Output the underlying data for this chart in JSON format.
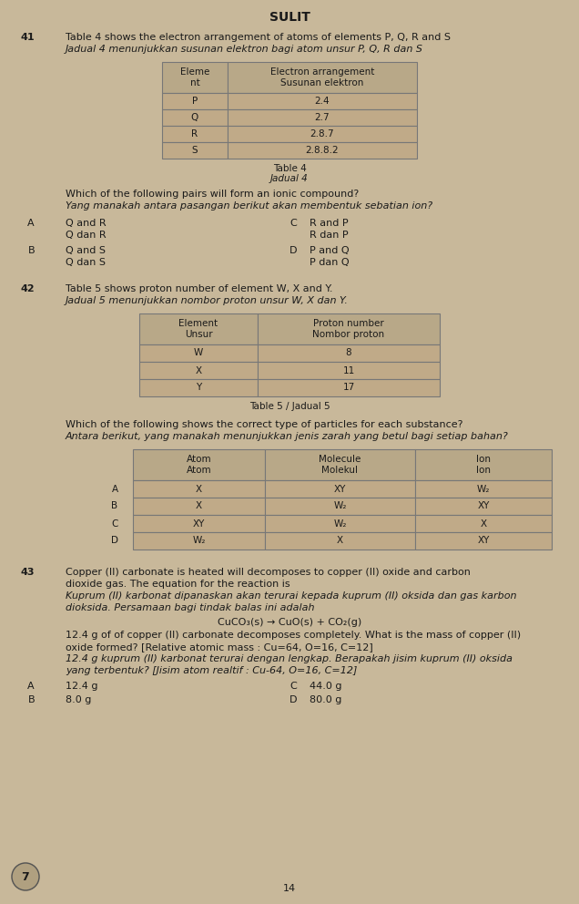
{
  "bg_color": "#c8b89a",
  "text_color": "#1a1a1a",
  "title": "SULIT",
  "q41_num": "41",
  "q41_en": "Table 4 shows the electron arrangement of atoms of elements P, Q, R and S",
  "q41_my": "Jadual 4 menunjukkan susunan elektron bagi atom unsur P, Q, R dan S",
  "table4_data": [
    [
      "P",
      "2.4"
    ],
    [
      "Q",
      "2.7"
    ],
    [
      "R",
      "2.8.7"
    ],
    [
      "S",
      "2.8.8.2"
    ]
  ],
  "table4_caption_en": "Table 4",
  "table4_caption_my": "Jadual 4",
  "q41_question_en": "Which of the following pairs will form an ionic compound?",
  "q41_question_my": "Yang manakah antara pasangan berikut akan membentuk sebatian ion?",
  "q41_A_en": "Q and R",
  "q41_A_my": "Q dan R",
  "q41_B_en": "Q and S",
  "q41_B_my": "Q dan S",
  "q41_C_en": "R and P",
  "q41_C_my": "R dan P",
  "q41_D_en": "P and Q",
  "q41_D_my": "P dan Q",
  "q42_num": "42",
  "q42_en": "Table 5 shows proton number of element W, X and Y.",
  "q42_my": "Jadual 5 menunjukkan nombor proton unsur W, X dan Y.",
  "table5_data": [
    [
      "W",
      "8"
    ],
    [
      "X",
      "11"
    ],
    [
      "Y",
      "17"
    ]
  ],
  "table5_caption": "Table 5 / Jadual 5",
  "q42_question_en": "Which of the following shows the correct type of particles for each substance?",
  "q42_question_my": "Antara berikut, yang manakah menunjukkan jenis zarah yang betul bagi setiap bahan?",
  "table6_data": [
    [
      "A",
      "X",
      "XY",
      "W₂"
    ],
    [
      "B",
      "X",
      "W₂",
      "XY"
    ],
    [
      "C",
      "XY",
      "W₂",
      "X"
    ],
    [
      "D",
      "W₂",
      "X",
      "XY"
    ]
  ],
  "q43_num": "43",
  "q43_en1": "Copper (II) carbonate is heated will decomposes to copper (II) oxide and carbon",
  "q43_en2": "dioxide gas. The equation for the reaction is",
  "q43_my1": "Kuprum (II) karbonat dipanaskan akan terurai kepada kuprum (II) oksida dan gas karbon",
  "q43_my2": "dioksida. Persamaan bagi tindak balas ini adalah",
  "q43_equation": "CuCO₃(s) → CuO(s) + CO₂(g)",
  "q43_en3": "12.4 g of of copper (II) carbonate decomposes completely. What is the mass of copper (II)",
  "q43_en4": "oxide formed? [Relative atomic mass : Cu=64, O=16, C=12]",
  "q43_my3": "12.4 g kuprum (II) karbonat terurai dengan lengkap. Berapakah jisim kuprum (II) oksida",
  "q43_my4": "yang terbentuk? [Jisim atom realtif : Cu-64, O=16, C=12]",
  "q43_A": "12.4 g",
  "q43_B": "8.0 g",
  "q43_C": "44.0 g",
  "q43_D": "80.0 g",
  "page_num": "14",
  "circle_num": "7",
  "table_edge": "#777777",
  "table_header_bg": "#b8a888",
  "table_data_bg": "#c0aa88"
}
